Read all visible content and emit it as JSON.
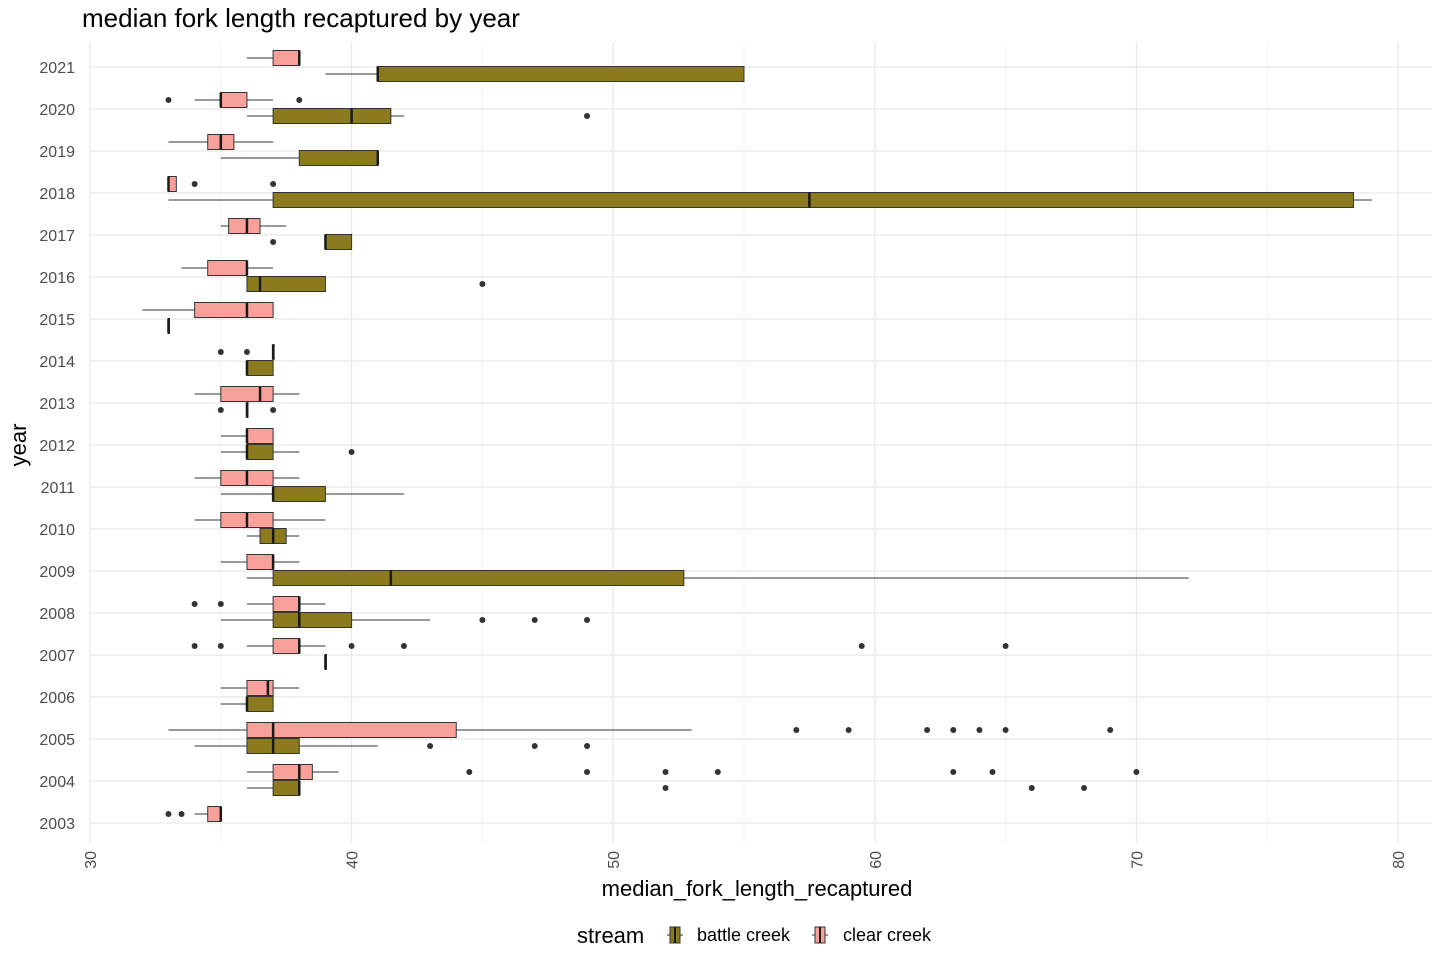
{
  "chart_data": {
    "type": "boxplot",
    "orientation": "horizontal",
    "title": "median fork length recaptured by year",
    "xlabel": "median_fork_length_recaptured",
    "ylabel": "year",
    "xlim": [
      30,
      81.3
    ],
    "x_ticks": [
      30,
      40,
      50,
      60,
      70,
      80
    ],
    "grid": true,
    "legend": {
      "title": "stream",
      "position": "bottom"
    },
    "categories": [
      "2003",
      "2004",
      "2005",
      "2006",
      "2007",
      "2008",
      "2009",
      "2010",
      "2011",
      "2012",
      "2013",
      "2014",
      "2015",
      "2016",
      "2017",
      "2018",
      "2019",
      "2020",
      "2021"
    ],
    "series": [
      {
        "name": "battle creek",
        "color": "#8b7b1e",
        "boxes": [
          {
            "year": "2004",
            "min": 36,
            "q1": 37,
            "median": 38,
            "q3": 38,
            "max": 38,
            "outliers": [
              52,
              66,
              68
            ]
          },
          {
            "year": "2005",
            "min": 34,
            "q1": 36,
            "median": 37,
            "q3": 38,
            "max": 41,
            "outliers": [
              43,
              47,
              49
            ]
          },
          {
            "year": "2006",
            "min": 35,
            "q1": 36,
            "median": 36,
            "q3": 37,
            "max": 37,
            "outliers": []
          },
          {
            "year": "2007",
            "min": 39,
            "q1": 39,
            "median": 39,
            "q3": 39,
            "max": 39,
            "outliers": []
          },
          {
            "year": "2008",
            "min": 35,
            "q1": 37,
            "median": 38,
            "q3": 40,
            "max": 43,
            "outliers": [
              45,
              47,
              49
            ]
          },
          {
            "year": "2009",
            "min": 36,
            "q1": 37,
            "median": 41.5,
            "q3": 52.7,
            "max": 72,
            "outliers": []
          },
          {
            "year": "2010",
            "min": 36,
            "q1": 36.5,
            "median": 37,
            "q3": 37.5,
            "max": 38,
            "outliers": []
          },
          {
            "year": "2011",
            "min": 35,
            "q1": 37,
            "median": 37,
            "q3": 39,
            "max": 42,
            "outliers": []
          },
          {
            "year": "2012",
            "min": 35,
            "q1": 36,
            "median": 36,
            "q3": 37,
            "max": 38,
            "outliers": [
              40
            ]
          },
          {
            "year": "2013",
            "min": 36,
            "q1": 36,
            "median": 36,
            "q3": 36,
            "max": 36,
            "outliers": [
              35,
              37
            ]
          },
          {
            "year": "2014",
            "min": 36,
            "q1": 36,
            "median": 36,
            "q3": 37,
            "max": 37,
            "outliers": []
          },
          {
            "year": "2015",
            "min": 33,
            "q1": 33,
            "median": 33,
            "q3": 33,
            "max": 33,
            "outliers": []
          },
          {
            "year": "2016",
            "min": 36,
            "q1": 36,
            "median": 36.5,
            "q3": 39,
            "max": 39,
            "outliers": [
              45
            ]
          },
          {
            "year": "2017",
            "min": 39,
            "q1": 39,
            "median": 39,
            "q3": 40,
            "max": 40,
            "outliers": [
              37
            ]
          },
          {
            "year": "2018",
            "min": 33,
            "q1": 37,
            "median": 57.5,
            "q3": 78.3,
            "max": 79,
            "outliers": []
          },
          {
            "year": "2019",
            "min": 35,
            "q1": 38,
            "median": 41,
            "q3": 41,
            "max": 41,
            "outliers": []
          },
          {
            "year": "2020",
            "min": 36,
            "q1": 37,
            "median": 40,
            "q3": 41.5,
            "max": 42,
            "outliers": [
              49
            ]
          },
          {
            "year": "2021",
            "min": 39,
            "q1": 41,
            "median": 41,
            "q3": 55,
            "max": 55,
            "outliers": []
          }
        ]
      },
      {
        "name": "clear creek",
        "color": "#f8a09a",
        "boxes": [
          {
            "year": "2003",
            "min": 34,
            "q1": 34.5,
            "median": 35,
            "q3": 35,
            "max": 35,
            "outliers": [
              33,
              33.5
            ]
          },
          {
            "year": "2004",
            "min": 36,
            "q1": 37,
            "median": 38,
            "q3": 38.5,
            "max": 39.5,
            "outliers": [
              44.5,
              49,
              52,
              54,
              63,
              64.5,
              70
            ]
          },
          {
            "year": "2005",
            "min": 33,
            "q1": 36,
            "median": 37,
            "q3": 44,
            "max": 53,
            "outliers": [
              57,
              59,
              62,
              63,
              64,
              65,
              69
            ]
          },
          {
            "year": "2006",
            "min": 35,
            "q1": 36,
            "median": 36.8,
            "q3": 37,
            "max": 38,
            "outliers": []
          },
          {
            "year": "2007",
            "min": 36,
            "q1": 37,
            "median": 38,
            "q3": 38,
            "max": 39,
            "outliers": [
              34,
              35,
              40,
              42,
              59.5,
              65
            ]
          },
          {
            "year": "2008",
            "min": 36,
            "q1": 37,
            "median": 38,
            "q3": 38,
            "max": 39,
            "outliers": [
              34,
              35
            ]
          },
          {
            "year": "2009",
            "min": 35,
            "q1": 36,
            "median": 37,
            "q3": 37,
            "max": 38,
            "outliers": []
          },
          {
            "year": "2010",
            "min": 34,
            "q1": 35,
            "median": 36,
            "q3": 37,
            "max": 39,
            "outliers": []
          },
          {
            "year": "2011",
            "min": 34,
            "q1": 35,
            "median": 36,
            "q3": 37,
            "max": 38,
            "outliers": []
          },
          {
            "year": "2012",
            "min": 35,
            "q1": 36,
            "median": 36,
            "q3": 37,
            "max": 37,
            "outliers": []
          },
          {
            "year": "2013",
            "min": 34,
            "q1": 35,
            "median": 36.5,
            "q3": 37,
            "max": 38,
            "outliers": []
          },
          {
            "year": "2014",
            "min": 37,
            "q1": 37,
            "median": 37,
            "q3": 37,
            "max": 37,
            "outliers": [
              35,
              36
            ]
          },
          {
            "year": "2015",
            "min": 32,
            "q1": 34,
            "median": 36,
            "q3": 37,
            "max": 37,
            "outliers": []
          },
          {
            "year": "2016",
            "min": 33.5,
            "q1": 34.5,
            "median": 36,
            "q3": 36,
            "max": 37,
            "outliers": []
          },
          {
            "year": "2017",
            "min": 35,
            "q1": 35.3,
            "median": 36,
            "q3": 36.5,
            "max": 37.5,
            "outliers": []
          },
          {
            "year": "2018",
            "min": 33,
            "q1": 33,
            "median": 33,
            "q3": 33.3,
            "max": 33.3,
            "outliers": [
              34,
              37
            ]
          },
          {
            "year": "2019",
            "min": 33,
            "q1": 34.5,
            "median": 35,
            "q3": 35.5,
            "max": 37,
            "outliers": []
          },
          {
            "year": "2020",
            "min": 34,
            "q1": 35,
            "median": 35,
            "q3": 36,
            "max": 37,
            "outliers": [
              33,
              38
            ]
          },
          {
            "year": "2021",
            "min": 36,
            "q1": 37,
            "median": 38,
            "q3": 38,
            "max": 38,
            "outliers": []
          }
        ]
      }
    ]
  }
}
